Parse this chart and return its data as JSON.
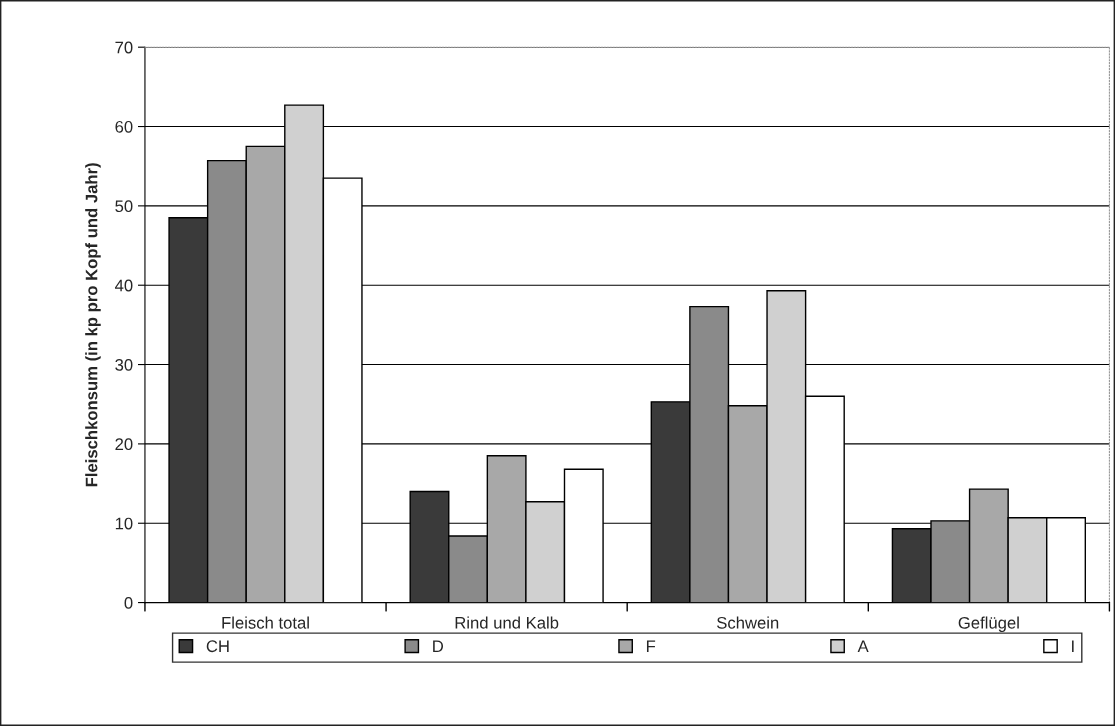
{
  "chart_data": {
    "type": "bar",
    "ylabel": "Fleischkonsum (in kp pro Kopf und Jahr)",
    "categories": [
      "Fleisch total",
      "Rind und Kalb",
      "Schwein",
      "Geflügel"
    ],
    "series": [
      {
        "name": "CH",
        "color": "#3a3a3a",
        "values": [
          48.5,
          14.0,
          25.3,
          9.3
        ]
      },
      {
        "name": "D",
        "color": "#8a8a8a",
        "values": [
          55.7,
          8.4,
          37.3,
          10.3
        ]
      },
      {
        "name": "F",
        "color": "#a8a8a8",
        "values": [
          57.5,
          18.5,
          24.8,
          14.3
        ]
      },
      {
        "name": "A",
        "color": "#d0d0d0",
        "values": [
          62.7,
          12.7,
          39.3,
          10.7
        ]
      },
      {
        "name": "I",
        "color": "#ffffff",
        "values": [
          53.5,
          16.8,
          26.0,
          10.7
        ]
      }
    ],
    "ylim": [
      0,
      70
    ],
    "yticks": [
      0,
      10,
      20,
      30,
      40,
      50,
      60,
      70
    ],
    "grid": "y",
    "legend": "bottom"
  }
}
